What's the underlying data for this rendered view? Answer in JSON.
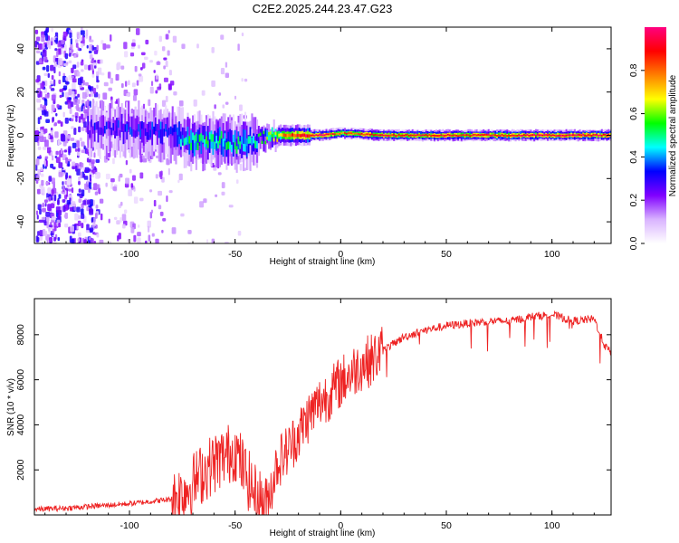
{
  "title": "C2E2.2025.244.23.47.G23",
  "chart_data": [
    {
      "type": "heatmap",
      "xlabel": "Height of straight line (km)",
      "ylabel": "Frequency (Hz)",
      "xlim": [
        -145,
        128
      ],
      "ylim": [
        -50,
        50
      ],
      "xticks": [
        -100,
        -50,
        0,
        50,
        100
      ],
      "yticks": [
        -40,
        -20,
        0,
        20,
        40
      ],
      "colorbar": {
        "label": "Normalized spectral amplitude",
        "range": [
          0,
          1
        ],
        "ticks": [
          0.0,
          0.2,
          0.4,
          0.6,
          0.8
        ],
        "colors": [
          "#ffffff",
          "#d9b3ff",
          "#8000ff",
          "#0000ff",
          "#00ffff",
          "#00ff00",
          "#ffff00",
          "#ff8000",
          "#ff0000",
          "#ff0080"
        ]
      },
      "ridge": {
        "description": "dominant frequency vs height",
        "x": [
          -120,
          -100,
          -80,
          -70,
          -60,
          -50,
          -40,
          -30,
          -20,
          -10,
          0,
          20,
          40,
          60,
          80,
          100,
          128
        ],
        "freq": [
          3,
          3,
          1,
          -3,
          -2,
          -4,
          -2,
          0,
          0,
          0,
          1,
          0,
          0,
          0,
          0,
          0,
          0
        ],
        "amplitude": [
          0.3,
          0.3,
          0.35,
          0.5,
          0.5,
          0.5,
          0.45,
          0.7,
          0.9,
          0.95,
          0.8,
          0.9,
          0.9,
          0.9,
          0.9,
          0.95,
          0.95
        ]
      }
    },
    {
      "type": "line",
      "xlabel": "Height of straight line (km)",
      "ylabel": "SNR (10 * v/v)",
      "xlim": [
        -145,
        128
      ],
      "ylim": [
        0,
        9600
      ],
      "xticks": [
        -100,
        -50,
        0,
        50,
        100
      ],
      "yticks": [
        2000,
        4000,
        6000,
        8000
      ],
      "color": "#ee2222",
      "series": [
        {
          "name": "SNR",
          "x": [
            -145,
            -130,
            -115,
            -100,
            -90,
            -80,
            -75,
            -70,
            -65,
            -60,
            -55,
            -50,
            -45,
            -40,
            -35,
            -30,
            -25,
            -20,
            -15,
            -10,
            -5,
            0,
            5,
            10,
            15,
            20,
            25,
            30,
            40,
            50,
            60,
            70,
            80,
            90,
            100,
            110,
            120,
            125,
            128
          ],
          "y": [
            250,
            300,
            400,
            500,
            600,
            700,
            1000,
            1400,
            1900,
            2300,
            2600,
            2900,
            1800,
            800,
            500,
            2300,
            2900,
            3600,
            4400,
            5000,
            5400,
            5900,
            6300,
            6700,
            6900,
            7300,
            7600,
            7900,
            8200,
            8400,
            8500,
            8600,
            8600,
            8800,
            8900,
            8600,
            8700,
            7500,
            7200
          ]
        }
      ]
    }
  ]
}
